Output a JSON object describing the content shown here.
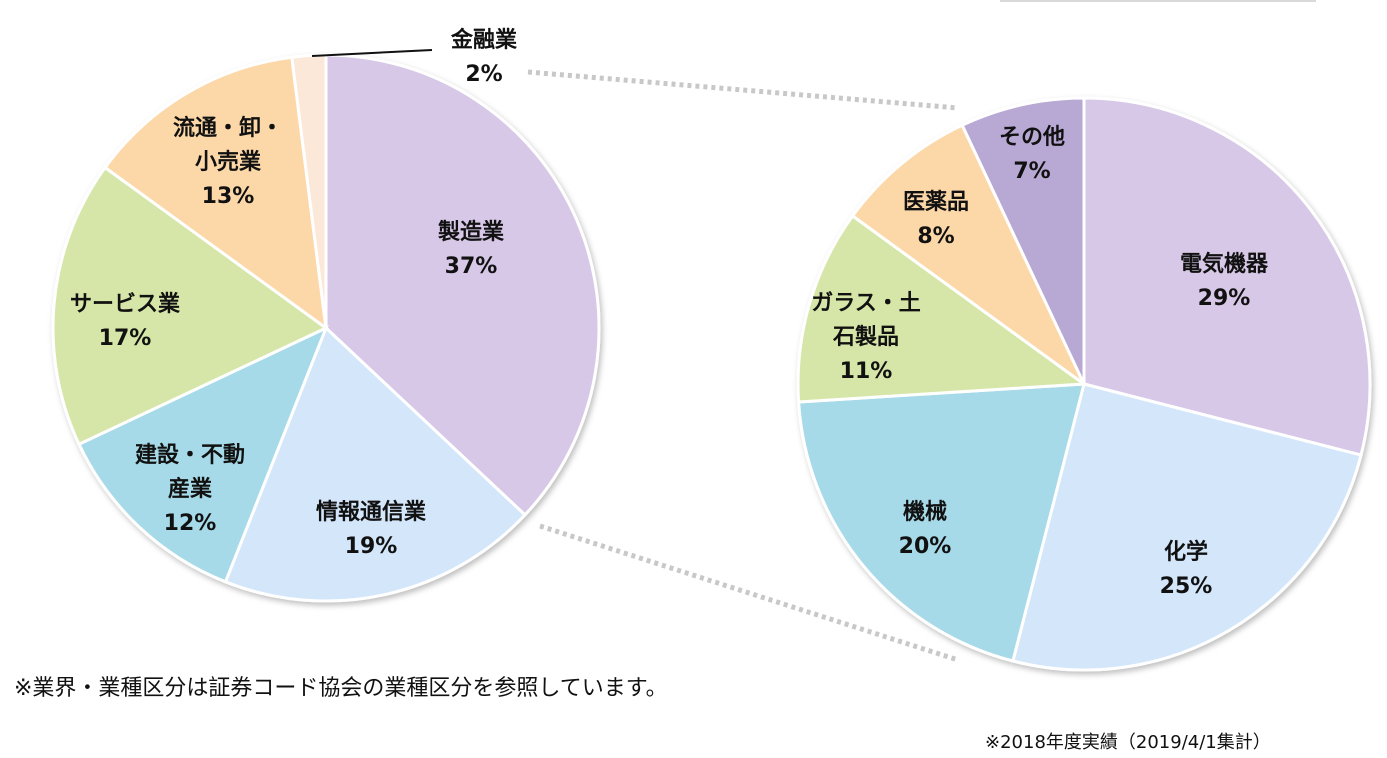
{
  "chart_data": [
    {
      "type": "pie",
      "slices": [
        {
          "label": [
            "製造業"
          ],
          "value": 37,
          "value_label": "37%",
          "color": "#d8c8e8"
        },
        {
          "label": [
            "情報通信業"
          ],
          "value": 19,
          "value_label": "19%",
          "color": "#d3e6fa"
        },
        {
          "label": [
            "建設・不動",
            "産業"
          ],
          "value": 12,
          "value_label": "12%",
          "color": "#a6dae8"
        },
        {
          "label": [
            "サービス業"
          ],
          "value": 17,
          "value_label": "17%",
          "color": "#d6e6a8"
        },
        {
          "label": [
            "流通・卸・",
            "小売業"
          ],
          "value": 13,
          "value_label": "13%",
          "color": "#fcd8a8"
        },
        {
          "label": [
            "金融業"
          ],
          "value": 2,
          "value_label": "2%",
          "color": "#fce8d8"
        }
      ]
    },
    {
      "type": "pie",
      "slices": [
        {
          "label": [
            "電気機器"
          ],
          "value": 29,
          "value_label": "29%",
          "color": "#d8c8e8"
        },
        {
          "label": [
            "化学"
          ],
          "value": 25,
          "value_label": "25%",
          "color": "#d3e6fa"
        },
        {
          "label": [
            "機械"
          ],
          "value": 20,
          "value_label": "20%",
          "color": "#a6dae8"
        },
        {
          "label": [
            "ガラス・土",
            "石製品"
          ],
          "value": 11,
          "value_label": "11%",
          "color": "#d6e6a8"
        },
        {
          "label": [
            "医薬品"
          ],
          "value": 8,
          "value_label": "8%",
          "color": "#fcd8a8"
        },
        {
          "label": [
            "その他"
          ],
          "value": 7,
          "value_label": "7%",
          "color": "#b8a8d4"
        }
      ]
    }
  ],
  "notes": {
    "classification": "※業界・業種区分は証券コード協会の業種区分を参照しています。",
    "period": "※2018年度実績（2019/4/1集計）"
  }
}
